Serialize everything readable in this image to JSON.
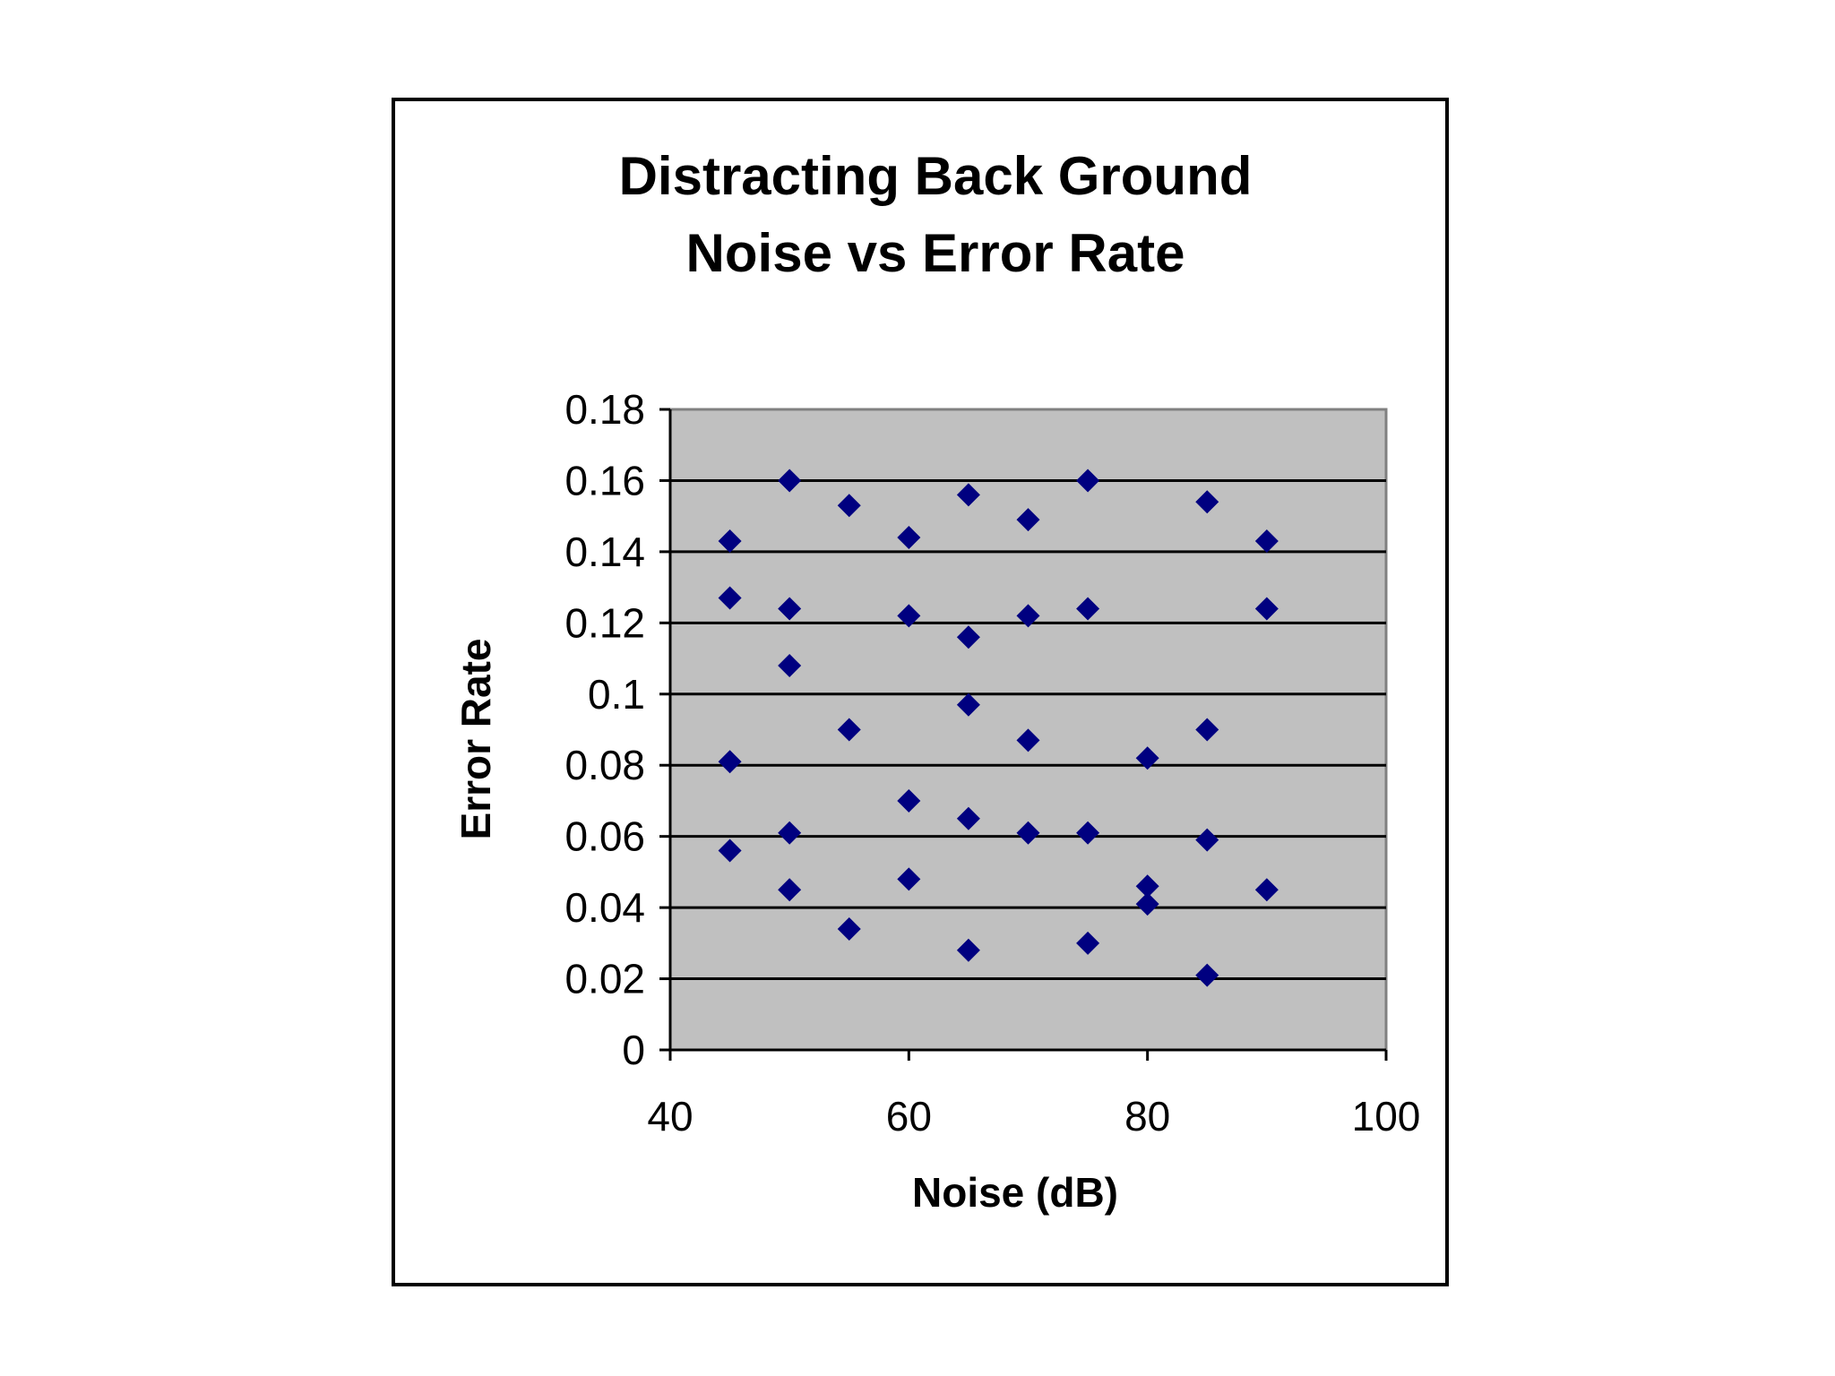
{
  "chart_data": {
    "type": "scatter",
    "title_lines": [
      "Distracting Back Ground",
      "Noise vs Error Rate"
    ],
    "xlabel": "Noise (dB)",
    "ylabel": "Error Rate",
    "xlim": [
      40,
      100
    ],
    "ylim": [
      0,
      0.18
    ],
    "x_ticks": [
      40,
      60,
      80,
      100
    ],
    "x_tick_labels": [
      "40",
      "60",
      "80",
      "100"
    ],
    "y_ticks": [
      0,
      0.02,
      0.04,
      0.06,
      0.08,
      0.1,
      0.12,
      0.14,
      0.16,
      0.18
    ],
    "y_tick_labels": [
      "0",
      "0.02",
      "0.04",
      "0.06",
      "0.08",
      "0.1",
      "0.12",
      "0.14",
      "0.16",
      "0.18"
    ],
    "grid": "horizontal",
    "legend": "none",
    "colors": {
      "plot_background": "#c0c0c0",
      "marker": "#000080",
      "gridline": "#000000",
      "plot_border": "#808080"
    },
    "marker_shape": "diamond",
    "points": [
      {
        "x": 45,
        "y": 0.143
      },
      {
        "x": 45,
        "y": 0.127
      },
      {
        "x": 45,
        "y": 0.081
      },
      {
        "x": 45,
        "y": 0.056
      },
      {
        "x": 50,
        "y": 0.16
      },
      {
        "x": 50,
        "y": 0.124
      },
      {
        "x": 50,
        "y": 0.108
      },
      {
        "x": 50,
        "y": 0.061
      },
      {
        "x": 50,
        "y": 0.045
      },
      {
        "x": 55,
        "y": 0.153
      },
      {
        "x": 55,
        "y": 0.09
      },
      {
        "x": 55,
        "y": 0.034
      },
      {
        "x": 60,
        "y": 0.144
      },
      {
        "x": 60,
        "y": 0.122
      },
      {
        "x": 60,
        "y": 0.07
      },
      {
        "x": 60,
        "y": 0.048
      },
      {
        "x": 65,
        "y": 0.156
      },
      {
        "x": 65,
        "y": 0.116
      },
      {
        "x": 65,
        "y": 0.097
      },
      {
        "x": 65,
        "y": 0.065
      },
      {
        "x": 65,
        "y": 0.028
      },
      {
        "x": 70,
        "y": 0.149
      },
      {
        "x": 70,
        "y": 0.122
      },
      {
        "x": 70,
        "y": 0.087
      },
      {
        "x": 70,
        "y": 0.061
      },
      {
        "x": 75,
        "y": 0.16
      },
      {
        "x": 75,
        "y": 0.124
      },
      {
        "x": 75,
        "y": 0.061
      },
      {
        "x": 75,
        "y": 0.03
      },
      {
        "x": 80,
        "y": 0.082
      },
      {
        "x": 80,
        "y": 0.046
      },
      {
        "x": 80,
        "y": 0.041
      },
      {
        "x": 85,
        "y": 0.154
      },
      {
        "x": 85,
        "y": 0.09
      },
      {
        "x": 85,
        "y": 0.059
      },
      {
        "x": 85,
        "y": 0.021
      },
      {
        "x": 90,
        "y": 0.143
      },
      {
        "x": 90,
        "y": 0.124
      },
      {
        "x": 90,
        "y": 0.045
      }
    ]
  }
}
